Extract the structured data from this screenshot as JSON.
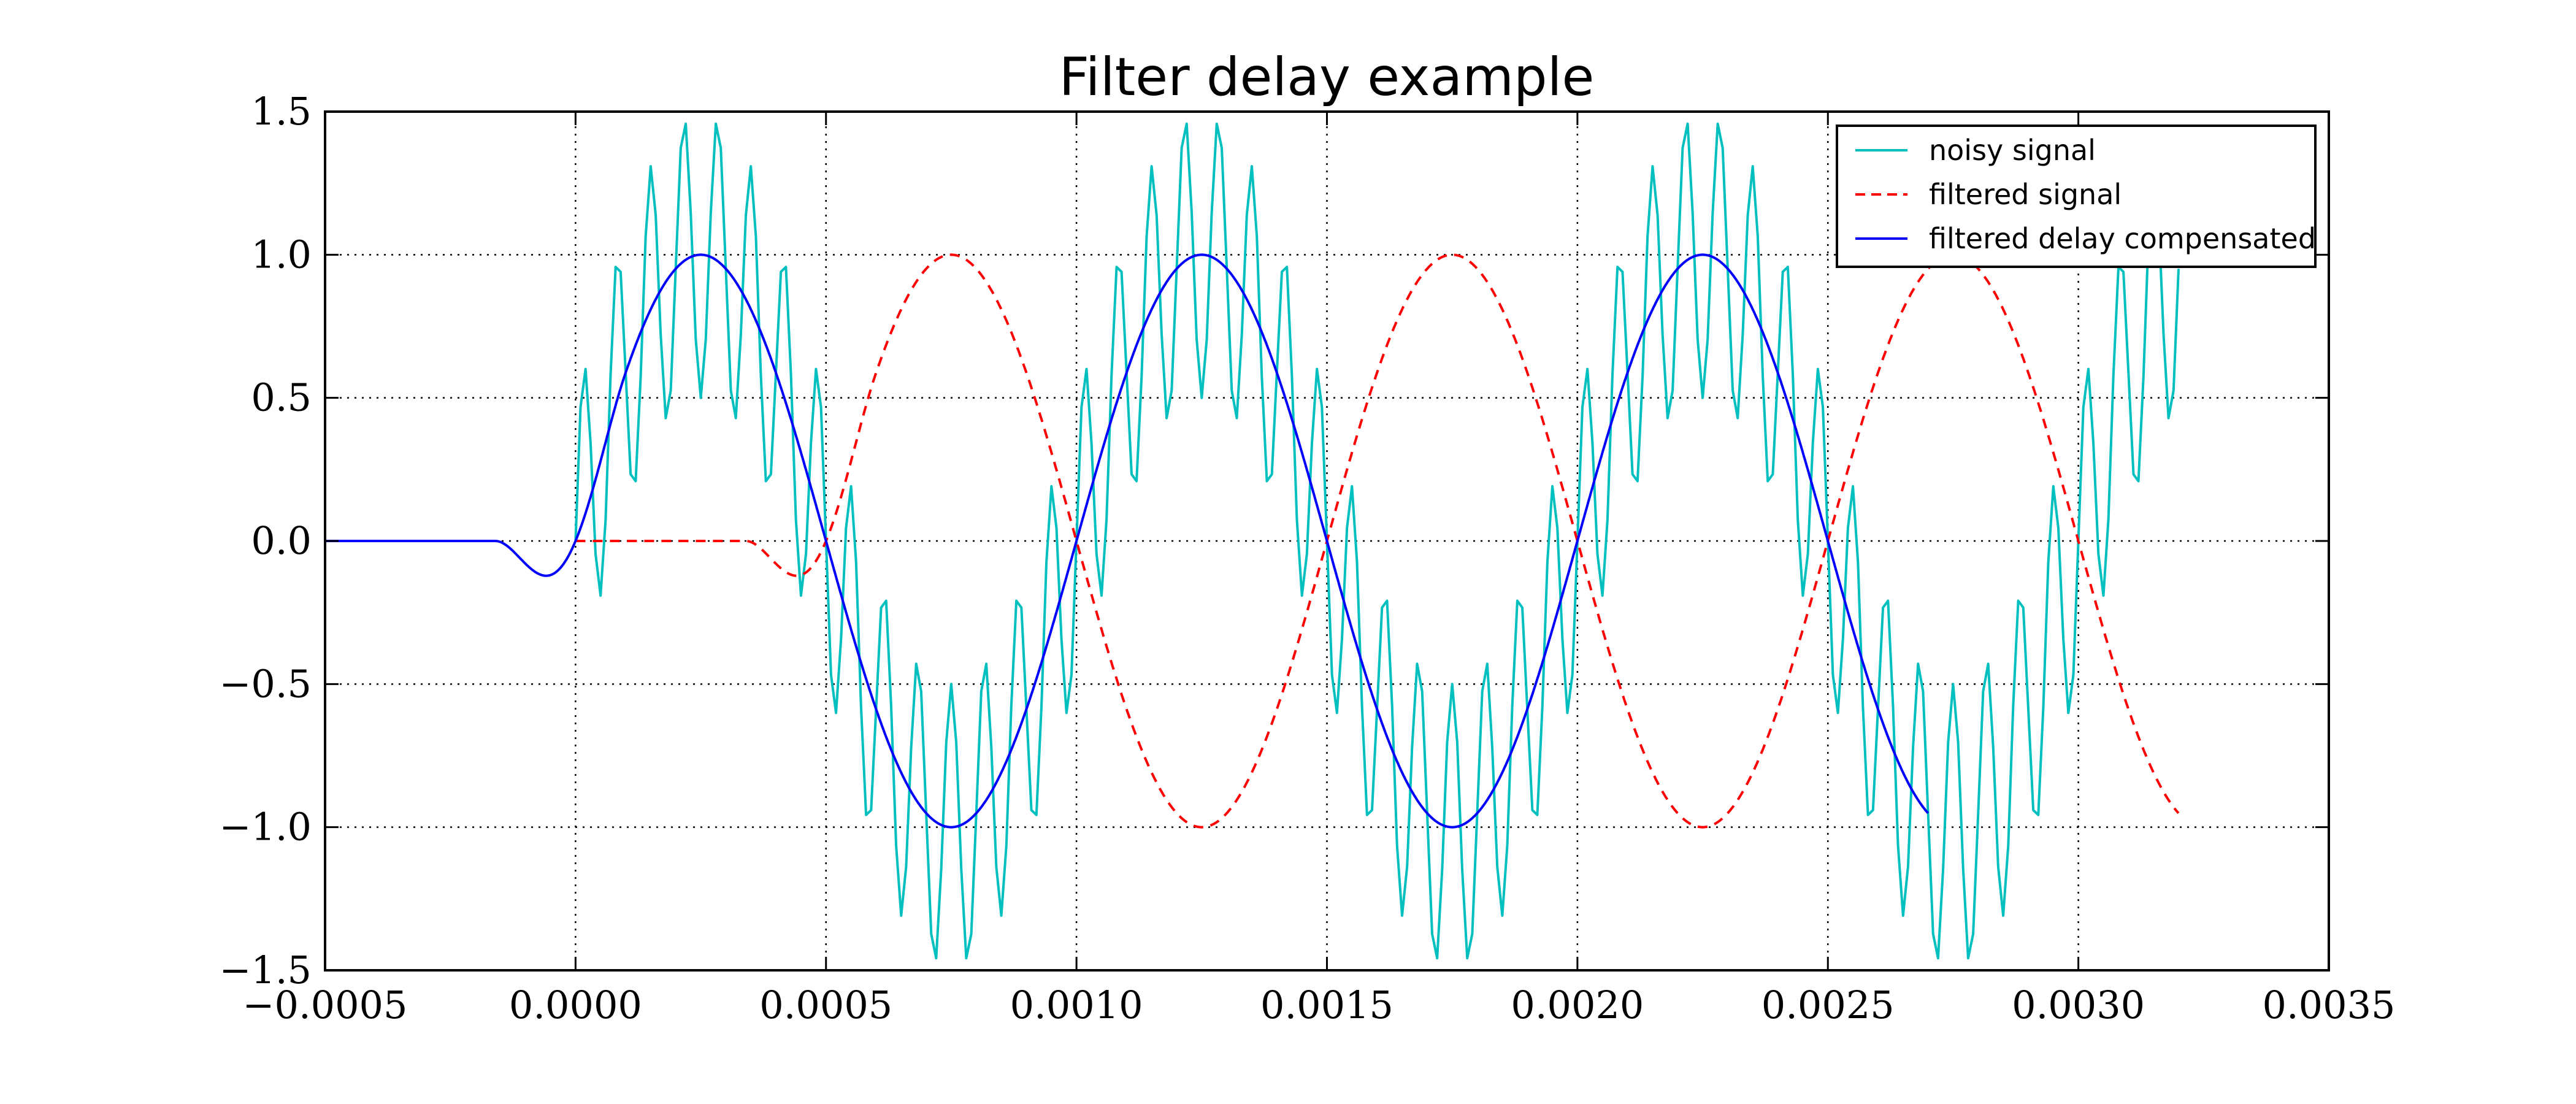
{
  "chart_data": {
    "type": "line",
    "title": "Filter delay example",
    "xlabel": "",
    "ylabel": "",
    "xlim": [
      -0.0005,
      0.0035
    ],
    "ylim": [
      -1.5,
      1.5
    ],
    "x_ticks": [
      "−0.0005",
      "0.0000",
      "0.0005",
      "0.0010",
      "0.0015",
      "0.0020",
      "0.0025",
      "0.0030",
      "0.0035"
    ],
    "y_ticks": [
      "−1.5",
      "−1.0",
      "−0.5",
      "0.0",
      "0.5",
      "1.0",
      "1.5"
    ],
    "grid": true,
    "legend_position": "top-right",
    "series": [
      {
        "name": "noisy signal",
        "color": "#00bfbf",
        "line_style": "solid",
        "x_range": [
          0.0,
          0.0032
        ],
        "sample_step": 1e-05,
        "function": "sin(2π·1000·t) + 0.5·sin(2π·15000·t)",
        "components": [
          {
            "amplitude": 1.0,
            "frequency_hz": 1000
          },
          {
            "amplitude": 0.5,
            "frequency_hz": 15000
          }
        ]
      },
      {
        "name": "filtered signal",
        "color": "#ff0000",
        "line_style": "dashed",
        "x_range": [
          0.0,
          0.0032
        ],
        "delay_s": 0.0005,
        "transient_start": 0.00034,
        "function": "sin(2π·1000·(t − 0.0005)) after filter warm-up",
        "frequency_hz": 1000
      },
      {
        "name": "filtered delay compensated",
        "color": "#0000ff",
        "line_style": "solid",
        "x_range": [
          -0.0005,
          0.0027
        ],
        "transient_start": -0.00016,
        "function": "sin(2π·1000·t) after filter warm-up",
        "frequency_hz": 1000
      }
    ]
  }
}
